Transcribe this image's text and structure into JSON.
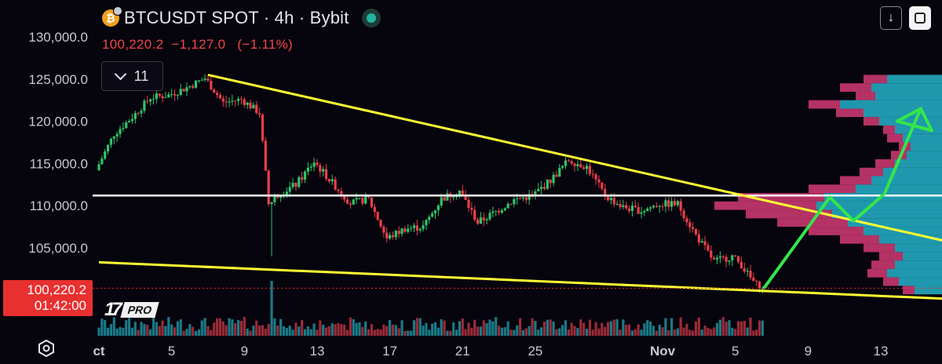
{
  "header": {
    "title": "BTCUSDT SPOT · 4h · Bybit",
    "coin_icon": "bitcoin-icon",
    "live_indicator_color": "#22b59d"
  },
  "quote": {
    "last": "100,220.2",
    "change": "−1,127.0",
    "change_pct": "(−1.11%)",
    "color": "#f04848"
  },
  "indicators_button": {
    "label": "11",
    "icon": "chevron-down-icon"
  },
  "toolbar": {
    "download_icon": "↓",
    "fullscreen_icon": "fullscreen-icon"
  },
  "price_tag": {
    "price": "100,220.2",
    "countdown": "01:42:00",
    "color": "#e83030"
  },
  "branding": {
    "logo": "17",
    "plan": "PRO"
  },
  "settings_icon": "settings-icon",
  "chart_data": {
    "type": "candlestick",
    "symbol": "BTCUSDT",
    "timeframe": "4h",
    "exchange": "Bybit",
    "y_axis": {
      "ticks": [
        "130,000.0",
        "125,000.0",
        "120,000.0",
        "115,000.0",
        "110,000.0",
        "105,000.0"
      ],
      "tick_values": [
        130000,
        125000,
        120000,
        115000,
        110000,
        105000
      ],
      "range": [
        98500,
        131000
      ]
    },
    "x_axis": {
      "ticks": [
        "ct",
        "5",
        "9",
        "13",
        "17",
        "21",
        "25",
        "Nov",
        "5",
        "9",
        "13"
      ],
      "tick_days": [
        1,
        5,
        9,
        13,
        17,
        21,
        25,
        32,
        36,
        40,
        44
      ],
      "range_days": [
        1,
        48.4
      ]
    },
    "closes_daily": [
      [
        1,
        114200
      ],
      [
        2,
        118500
      ],
      [
        3,
        120500
      ],
      [
        4,
        122800
      ],
      [
        5,
        123100
      ],
      [
        6,
        124000
      ],
      [
        7,
        125100
      ],
      [
        8,
        122200
      ],
      [
        9,
        122600
      ],
      [
        10,
        121000
      ],
      [
        10.5,
        110200
      ],
      [
        11,
        111300
      ],
      [
        12,
        112500
      ],
      [
        13,
        115200
      ],
      [
        14,
        112700
      ],
      [
        15,
        110300
      ],
      [
        16,
        110800
      ],
      [
        17,
        106100
      ],
      [
        18,
        107300
      ],
      [
        19,
        107500
      ],
      [
        20,
        110800
      ],
      [
        21,
        111800
      ],
      [
        22,
        108000
      ],
      [
        23,
        109300
      ],
      [
        24,
        110700
      ],
      [
        25,
        111200
      ],
      [
        26,
        113000
      ],
      [
        27,
        115400
      ],
      [
        28,
        114600
      ],
      [
        29,
        111200
      ],
      [
        30,
        109800
      ],
      [
        31,
        109400
      ],
      [
        32,
        110200
      ],
      [
        33,
        110200
      ],
      [
        34,
        106500
      ],
      [
        35,
        103400
      ],
      [
        36,
        104000
      ],
      [
        36.5,
        103000
      ],
      [
        37,
        101400
      ],
      [
        37.5,
        100220
      ]
    ],
    "volume_spike_day": 10.5,
    "current_price": 100220.2,
    "horizontal_line": {
      "price": 111200,
      "color": "#ffffff"
    },
    "trendlines": [
      {
        "name": "",
        "color": "#ffff33",
        "points": [
          [
            7,
            125500
          ],
          [
            48.4,
            105400
          ]
        ]
      },
      {
        "name": "",
        "color": "#ffff33",
        "points": [
          [
            1,
            103300
          ],
          [
            48.4,
            98900
          ]
        ]
      }
    ],
    "projection": {
      "color": "#33e64a",
      "points": [
        [
          37.6,
          100300
        ],
        [
          41.2,
          111000
        ],
        [
          42.5,
          108200
        ],
        [
          44.2,
          111400
        ],
        [
          46.2,
          121500
        ]
      ]
    },
    "volume_profile": {
      "colors": {
        "up": "#22a8c0",
        "down": "#c8376e"
      },
      "levels": [
        [
          125000,
          70,
          30
        ],
        [
          124000,
          90,
          40
        ],
        [
          123000,
          85,
          25
        ],
        [
          122000,
          130,
          40
        ],
        [
          121000,
          100,
          35
        ],
        [
          120000,
          80,
          20
        ],
        [
          119000,
          60,
          15
        ],
        [
          118000,
          50,
          20
        ],
        [
          117000,
          40,
          15
        ],
        [
          116000,
          45,
          20
        ],
        [
          115000,
          60,
          25
        ],
        [
          114000,
          75,
          30
        ],
        [
          113000,
          90,
          40
        ],
        [
          112000,
          110,
          60
        ],
        [
          111000,
          150,
          110
        ],
        [
          110000,
          160,
          130
        ],
        [
          109000,
          140,
          110
        ],
        [
          108000,
          120,
          90
        ],
        [
          107000,
          100,
          70
        ],
        [
          106000,
          80,
          50
        ],
        [
          105000,
          60,
          40
        ],
        [
          104000,
          50,
          30
        ],
        [
          103000,
          60,
          30
        ],
        [
          102000,
          70,
          25
        ],
        [
          101000,
          55,
          20
        ],
        [
          100000,
          35,
          15
        ]
      ]
    },
    "legend": "none"
  }
}
